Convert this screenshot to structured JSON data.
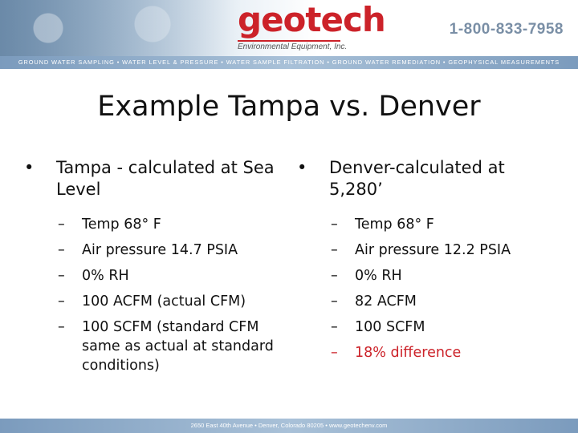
{
  "header": {
    "logo_geo": "geo",
    "logo_tech": "tech",
    "logo_subtitle": "Environmental Equipment, Inc.",
    "phone": "1-800-833-7958",
    "tagline": "GROUND WATER SAMPLING • WATER LEVEL & PRESSURE • WATER SAMPLE FILTRATION • GROUND WATER REMEDIATION • GEOPHYSICAL MEASUREMENTS"
  },
  "slide": {
    "title": "Example Tampa vs. Denver",
    "left": {
      "bullet": "Tampa - calculated at Sea Level",
      "items": [
        "Temp 68° F",
        "Air pressure 14.7 PSIA",
        "0% RH",
        "100 ACFM (actual CFM)",
        "100 SCFM (standard CFM same as actual at standard conditions)"
      ]
    },
    "right": {
      "bullet": "Denver-calculated at 5,280’",
      "items": [
        "Temp 68° F",
        "Air pressure 12.2 PSIA",
        "0% RH",
        "82 ACFM",
        "100 SCFM",
        "18% difference"
      ],
      "highlight_color": "#cc2229"
    }
  },
  "footer": {
    "text": "2650 East 40th Avenue • Denver, Colorado 80205 • www.geotechenv.com"
  }
}
